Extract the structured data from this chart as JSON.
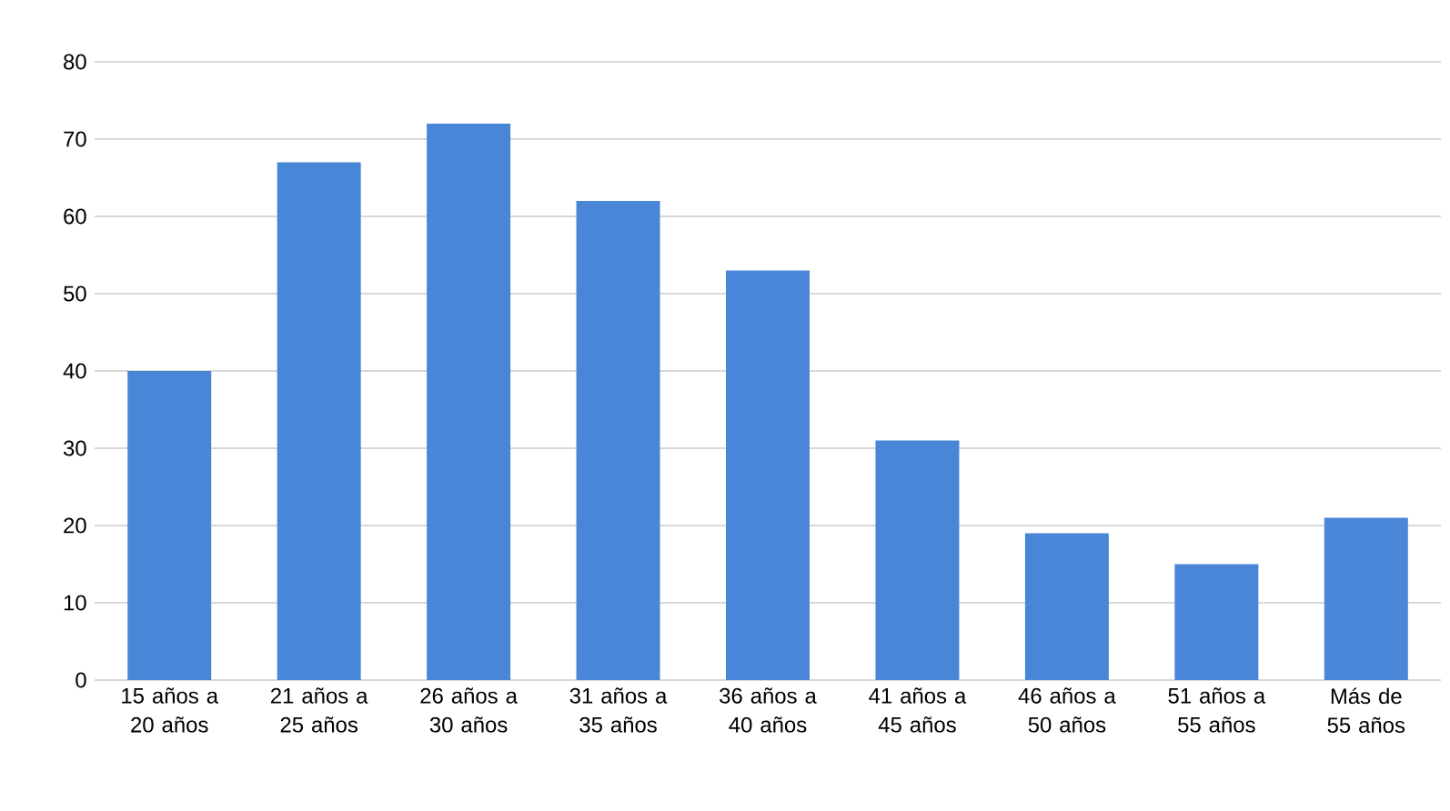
{
  "chart_data": {
    "type": "bar",
    "categories": [
      "15 años a 20 años",
      "21 años a 25 años",
      "26 años a 30 años",
      "31 años a 35 años",
      "36 años a 40 años",
      "41 años a 45 años",
      "46 años a 50 años",
      "51 años a 55 años",
      "Más de 55 años"
    ],
    "values": [
      40,
      67,
      72,
      62,
      53,
      31,
      19,
      15,
      21
    ],
    "color": "#4a86d8",
    "ylim": [
      0,
      80
    ],
    "yticks": [
      0,
      10,
      20,
      30,
      40,
      50,
      60,
      70,
      80
    ],
    "grid": "y"
  }
}
